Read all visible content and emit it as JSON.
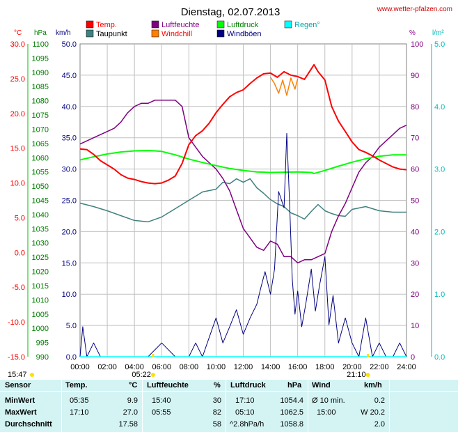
{
  "header": {
    "title": "Dienstag, 02.07.2013",
    "site": "www.wetter-pfalzen.com"
  },
  "axes": {
    "unit_temp": "°C",
    "unit_hpa": "hPa",
    "unit_kmh": "km/h",
    "unit_pct": "%",
    "unit_rain": "l/m²",
    "temp_ticks": [
      "30.0",
      "25.0",
      "20.0",
      "15.0",
      "10.0",
      "5.0",
      "0.0",
      "-5.0",
      "-10.0",
      "-15.0"
    ],
    "hpa_ticks": [
      "1100",
      "1095",
      "1090",
      "1085",
      "1080",
      "1075",
      "1070",
      "1065",
      "1060",
      "1055",
      "1050",
      "1045",
      "1040",
      "1035",
      "1030",
      "1025",
      "1020",
      "1015",
      "1010",
      "1005",
      "1000",
      "995",
      "990"
    ],
    "kmh_ticks": [
      "50.0",
      "45.0",
      "40.0",
      "35.0",
      "30.0",
      "25.0",
      "20.0",
      "15.0",
      "10.0",
      "5.0",
      "0.0"
    ],
    "pct_ticks": [
      "100",
      "90",
      "80",
      "70",
      "60",
      "50",
      "40",
      "30",
      "20",
      "10",
      "0"
    ],
    "rain_ticks": [
      "5.0",
      "4.0",
      "3.0",
      "2.0",
      "1.0",
      "0.0"
    ],
    "time_ticks": [
      "00:00",
      "02:00",
      "04:00",
      "06:00",
      "08:00",
      "10:00",
      "12:00",
      "14:00",
      "16:00",
      "18:00",
      "20:00",
      "22:00",
      "24:00"
    ]
  },
  "legend": [
    {
      "label": "Temp.",
      "color": "#ff0000"
    },
    {
      "label": "Taupunkt",
      "color": "#408080"
    },
    {
      "label": "Luftfeuchte",
      "color": "#800080"
    },
    {
      "label": "Windchill",
      "color": "#ff8000"
    },
    {
      "label": "Luftdruck",
      "color": "#00ff00"
    },
    {
      "label": "Windböen",
      "color": "#000080"
    },
    {
      "label": "Regen°",
      "color": "#00ffff"
    }
  ],
  "sun": {
    "sunrise": "05:22",
    "sunset": "21:10",
    "left_time": "15:47"
  },
  "chart_data": {
    "type": "line",
    "title": "Dienstag, 02.07.2013",
    "x_unit": "hours",
    "xlim": [
      0,
      24
    ],
    "temp_ylim": [
      -15,
      30
    ],
    "pressure_ylim": [
      990,
      1100
    ],
    "wind_ylim": [
      0,
      50
    ],
    "humidity_ylim": [
      0,
      100
    ],
    "rain_ylim": [
      0,
      5
    ],
    "series": [
      {
        "name": "Temp.",
        "axis": "temp",
        "color": "#ff0000",
        "x": [
          0,
          0.5,
          1,
          1.5,
          2,
          2.5,
          3,
          3.5,
          4,
          4.5,
          5,
          5.5,
          6,
          6.5,
          7,
          7.5,
          8,
          8.5,
          9,
          9.5,
          10,
          10.5,
          11,
          11.5,
          12,
          12.5,
          13,
          13.5,
          14,
          14.5,
          15,
          15.5,
          16,
          16.5,
          17,
          17.2,
          17.5,
          18,
          18.5,
          19,
          19.5,
          20,
          20.5,
          21,
          21.5,
          22,
          22.5,
          23,
          23.5,
          24
        ],
        "y": [
          14.9,
          14.8,
          14.1,
          13.2,
          12.6,
          12.0,
          11.2,
          10.7,
          10.5,
          10.2,
          10.0,
          9.9,
          10.0,
          10.4,
          11.0,
          12.8,
          15.5,
          16.8,
          17.5,
          18.6,
          20.1,
          21.3,
          22.4,
          23.0,
          23.4,
          24.3,
          25.1,
          25.7,
          25.8,
          25.2,
          26.0,
          25.5,
          25.3,
          24.9,
          26.4,
          27.0,
          26.0,
          24.8,
          21.0,
          18.9,
          17.4,
          15.9,
          14.8,
          14.4,
          13.9,
          13.3,
          12.8,
          12.3,
          12.0,
          11.9
        ]
      },
      {
        "name": "Windchill",
        "axis": "temp",
        "color": "#ff8000",
        "x": [
          14,
          14.3,
          14.6,
          14.9,
          15.2,
          15.5,
          15.8,
          16
        ],
        "y": [
          25.2,
          24.3,
          22.9,
          24.8,
          22.6,
          25.1,
          23.5,
          25.0
        ]
      },
      {
        "name": "Taupunkt",
        "axis": "temp",
        "color": "#408080",
        "x": [
          0,
          1,
          2,
          3,
          4,
          5,
          6,
          7,
          8,
          9,
          10,
          10.5,
          11,
          11.5,
          12,
          12.5,
          13,
          13.5,
          14,
          14.5,
          15,
          15.5,
          16,
          16.5,
          17,
          17.5,
          18,
          18.5,
          19,
          19.5,
          20,
          21,
          22,
          23,
          24
        ],
        "y": [
          7.1,
          6.6,
          6.0,
          5.3,
          4.6,
          4.4,
          5.1,
          6.3,
          7.5,
          8.7,
          9.1,
          10.1,
          9.9,
          10.6,
          10.1,
          10.6,
          9.3,
          8.5,
          7.6,
          7.0,
          6.6,
          5.7,
          5.3,
          4.8,
          5.9,
          6.9,
          6.0,
          5.6,
          5.3,
          5.2,
          6.2,
          6.6,
          6.0,
          5.8,
          5.8
        ]
      },
      {
        "name": "Luftfeuchte",
        "axis": "humidity",
        "color": "#800080",
        "x": [
          0,
          0.5,
          1,
          1.5,
          2,
          2.5,
          3,
          3.5,
          4,
          4.5,
          5,
          5.5,
          6,
          6.5,
          7,
          7.5,
          8,
          8.5,
          9,
          9.5,
          10,
          10.5,
          11,
          11.5,
          12,
          12.5,
          13,
          13.5,
          14,
          14.5,
          15,
          15.5,
          16,
          16.5,
          17,
          17.5,
          18,
          18.5,
          19,
          19.5,
          20,
          20.5,
          21,
          21.5,
          22,
          22.5,
          23,
          23.5,
          24
        ],
        "y": [
          68,
          69,
          70,
          71,
          72,
          73,
          75,
          78,
          80,
          81,
          81,
          82,
          82,
          82,
          82,
          80,
          70,
          67,
          64,
          62,
          60,
          57,
          53,
          47,
          41,
          38,
          35,
          34,
          37,
          36,
          32,
          32,
          30,
          31,
          31,
          32,
          33,
          40,
          45,
          49,
          54,
          59,
          62,
          64,
          67,
          69,
          71,
          73,
          74
        ]
      },
      {
        "name": "Luftdruck",
        "axis": "pressure",
        "color": "#00ff00",
        "x": [
          0,
          1,
          2,
          3,
          4,
          5,
          5.5,
          6,
          7,
          8,
          9,
          10,
          11,
          12,
          13,
          14,
          15,
          16,
          17,
          17.2,
          18,
          19,
          20,
          21,
          22,
          23,
          24
        ],
        "y": [
          1059.2,
          1060.3,
          1061.3,
          1062.0,
          1062.4,
          1062.5,
          1062.4,
          1062.2,
          1061.0,
          1059.5,
          1058.3,
          1057.2,
          1056.2,
          1055.5,
          1055.0,
          1054.8,
          1054.9,
          1055.0,
          1054.8,
          1054.4,
          1055.5,
          1057.0,
          1058.4,
          1059.6,
          1060.5,
          1061.0,
          1061.0
        ]
      },
      {
        "name": "Windböen",
        "axis": "wind",
        "color": "#000080",
        "x": [
          0,
          0.2,
          0.5,
          1,
          1.5,
          2,
          3,
          4,
          5,
          6,
          7,
          8,
          8.5,
          9,
          9.5,
          10,
          10.5,
          11,
          11.5,
          12,
          12.5,
          13,
          13.3,
          13.6,
          14,
          14.3,
          14.6,
          15,
          15.2,
          15.4,
          15.6,
          15.8,
          16,
          16.3,
          16.6,
          17,
          17.3,
          17.6,
          18,
          18.3,
          18.6,
          19,
          19.5,
          20,
          20.5,
          21,
          21.5,
          22,
          22.5,
          23,
          23.5,
          24
        ],
        "y": [
          0,
          4.8,
          0,
          2.2,
          0,
          0,
          0,
          0,
          0,
          2.2,
          0,
          0,
          2.2,
          0,
          3.1,
          6.2,
          2.2,
          4.8,
          7.5,
          3.6,
          6.2,
          8.4,
          11.1,
          13.6,
          10.0,
          14.0,
          26.4,
          23.8,
          35.7,
          25.0,
          12.4,
          6.8,
          10.5,
          4.8,
          8.5,
          14.0,
          7.3,
          11.3,
          16.0,
          5.1,
          9.8,
          2.2,
          6.2,
          2.2,
          0,
          6.2,
          0,
          2.2,
          0,
          0,
          2.2,
          0
        ]
      },
      {
        "name": "Regen°",
        "axis": "rain",
        "color": "#00ffff",
        "x": [
          0,
          24
        ],
        "y": [
          0,
          0
        ]
      }
    ]
  },
  "table": {
    "headers": {
      "sensor": "Sensor",
      "temp": "Temp.",
      "temp_unit": "°C",
      "hum": "Luftfeuchte",
      "hum_unit": "%",
      "press": "Luftdruck",
      "press_unit": "hPa",
      "wind": "Wind",
      "wind_unit": "km/h"
    },
    "rows": [
      {
        "label": "MinWert",
        "t_time": "05:35",
        "t_val": "9.9",
        "h_time": "15:40",
        "h_val": "30",
        "p_time": "17:10",
        "p_val": "1054.4",
        "w_time": "Ø 10 min.",
        "w_val": "0.2"
      },
      {
        "label": "MaxWert",
        "t_time": "17:10",
        "t_val": "27.0",
        "h_time": "05:55",
        "h_val": "82",
        "p_time": "05:10",
        "p_val": "1062.5",
        "w_time": "15:00",
        "w_val": "W 20.2"
      },
      {
        "label": "Durchschnitt",
        "t_time": "",
        "t_val": "17.58",
        "h_time": "",
        "h_val": "58",
        "p_time": "^2.8hPa/h",
        "p_val": "1058.8",
        "w_time": "",
        "w_val": "2.0"
      }
    ]
  }
}
